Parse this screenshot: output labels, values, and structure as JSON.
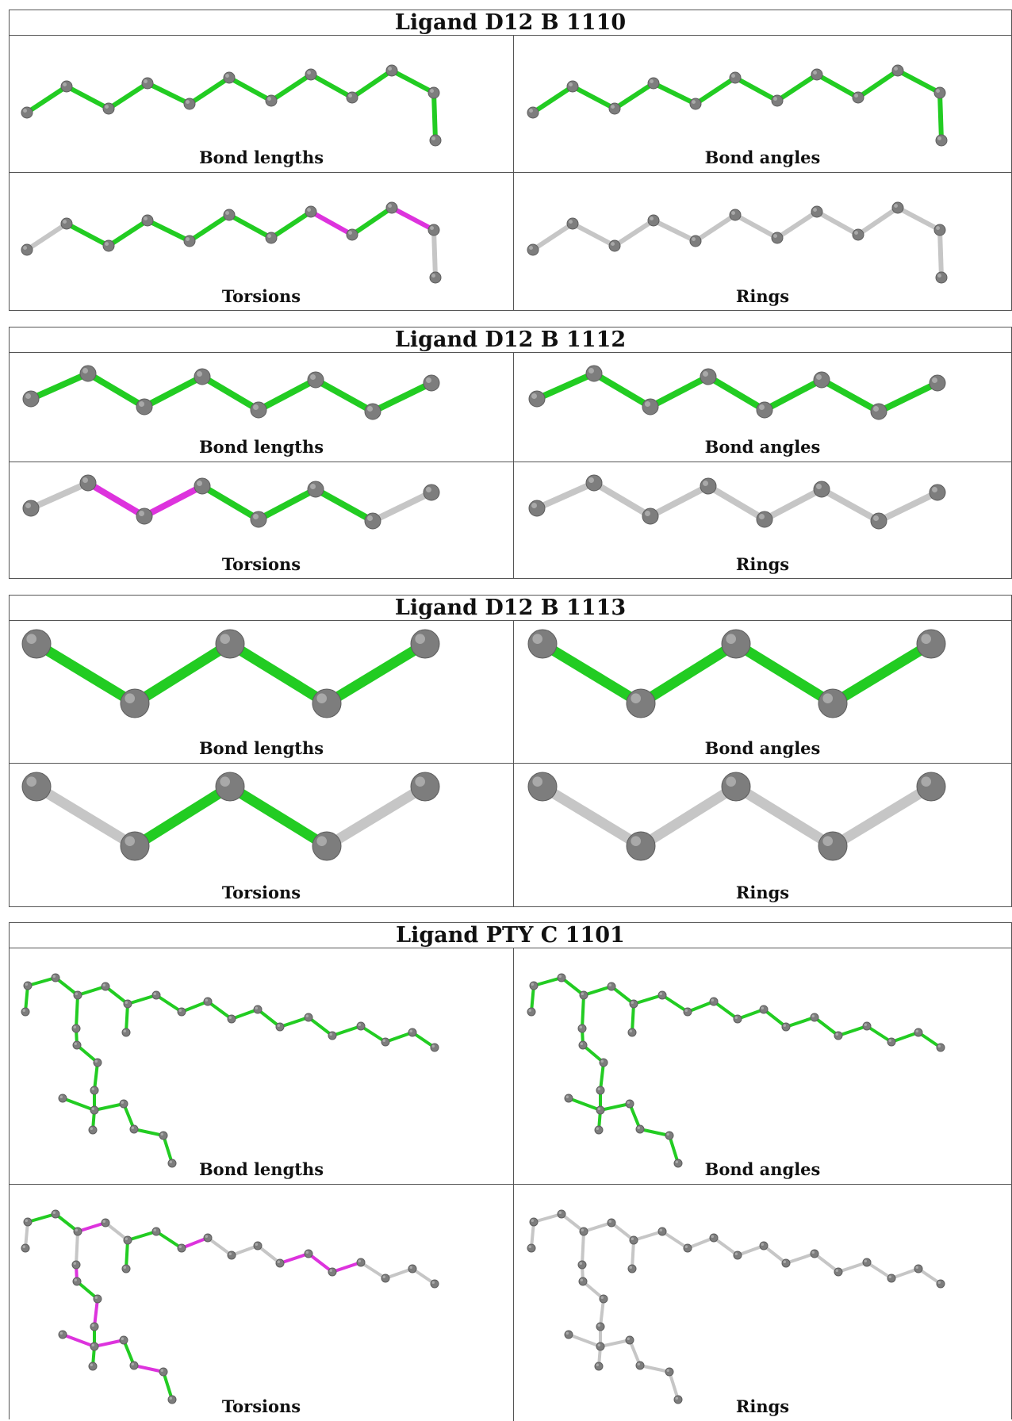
{
  "colors": {
    "green": "#22cc22",
    "magenta": "#dd33dd",
    "grey": "#c6c6c6",
    "atom": "#7d7d7d"
  },
  "ligands": [
    {
      "title": "Ligand D12 B 1110",
      "panels": [
        {
          "caption": "Bond lengths",
          "bond_colors": [
            "green",
            "green",
            "green",
            "green",
            "green",
            "green",
            "green",
            "green",
            "green",
            "green",
            "green"
          ]
        },
        {
          "caption": "Bond angles",
          "bond_colors": [
            "green",
            "green",
            "green",
            "green",
            "green",
            "green",
            "green",
            "green",
            "green",
            "green",
            "green"
          ]
        },
        {
          "caption": "Torsions",
          "bond_colors": [
            "grey",
            "green",
            "green",
            "green",
            "green",
            "green",
            "green",
            "magenta",
            "green",
            "magenta",
            "grey"
          ]
        },
        {
          "caption": "Rings",
          "bond_colors": [
            "grey",
            "grey",
            "grey",
            "grey",
            "grey",
            "grey",
            "grey",
            "grey",
            "grey",
            "grey",
            "grey"
          ]
        }
      ]
    },
    {
      "title": "Ligand D12 B 1112",
      "panels": [
        {
          "caption": "Bond lengths",
          "bond_colors": [
            "green",
            "green",
            "green",
            "green",
            "green",
            "green",
            "green"
          ]
        },
        {
          "caption": "Bond angles",
          "bond_colors": [
            "green",
            "green",
            "green",
            "green",
            "green",
            "green",
            "green"
          ]
        },
        {
          "caption": "Torsions",
          "bond_colors": [
            "grey",
            "magenta",
            "magenta",
            "green",
            "green",
            "green",
            "grey"
          ]
        },
        {
          "caption": "Rings",
          "bond_colors": [
            "grey",
            "grey",
            "grey",
            "grey",
            "grey",
            "grey",
            "grey"
          ]
        }
      ]
    },
    {
      "title": "Ligand D12 B 1113",
      "panels": [
        {
          "caption": "Bond lengths",
          "bond_colors": [
            "green",
            "green",
            "green",
            "green"
          ]
        },
        {
          "caption": "Bond angles",
          "bond_colors": [
            "green",
            "green",
            "green",
            "green"
          ]
        },
        {
          "caption": "Torsions",
          "bond_colors": [
            "grey",
            "green",
            "green",
            "grey"
          ]
        },
        {
          "caption": "Rings",
          "bond_colors": [
            "grey",
            "grey",
            "grey",
            "grey"
          ]
        }
      ]
    },
    {
      "title": "Ligand PTY C 1101",
      "panels": [
        {
          "caption": "Bond lengths",
          "bond_colors": [
            "green",
            "green",
            "green",
            "green",
            "green",
            "green",
            "green",
            "green",
            "green",
            "green",
            "green",
            "green",
            "green",
            "green",
            "green",
            "green",
            "green",
            "green",
            "green",
            "green",
            "green",
            "green",
            "green",
            "green",
            "green",
            "green",
            "green",
            "green",
            "green",
            "green"
          ]
        },
        {
          "caption": "Bond angles",
          "bond_colors": [
            "green",
            "green",
            "green",
            "green",
            "green",
            "green",
            "green",
            "green",
            "green",
            "green",
            "green",
            "green",
            "green",
            "green",
            "green",
            "green",
            "green",
            "green",
            "green",
            "green",
            "green",
            "green",
            "green",
            "green",
            "green",
            "green",
            "green",
            "green",
            "green",
            "green"
          ]
        },
        {
          "caption": "Torsions",
          "bond_colors": [
            "grey",
            "green",
            "green",
            "grey",
            "magenta",
            "green",
            "magenta",
            "green",
            "magenta",
            "green",
            "magenta",
            "green",
            "magenta",
            "green",
            "magenta",
            "grey",
            "green",
            "green",
            "green",
            "magenta",
            "grey",
            "grey",
            "grey",
            "magenta",
            "magenta",
            "magenta",
            "grey",
            "grey",
            "grey",
            "grey"
          ]
        },
        {
          "caption": "Rings",
          "bond_colors": [
            "grey",
            "grey",
            "grey",
            "grey",
            "grey",
            "grey",
            "grey",
            "grey",
            "grey",
            "grey",
            "grey",
            "grey",
            "grey",
            "grey",
            "grey",
            "grey",
            "grey",
            "grey",
            "grey",
            "grey",
            "grey",
            "grey",
            "grey",
            "grey",
            "grey",
            "grey",
            "grey",
            "grey",
            "grey",
            "grey"
          ]
        }
      ]
    }
  ]
}
